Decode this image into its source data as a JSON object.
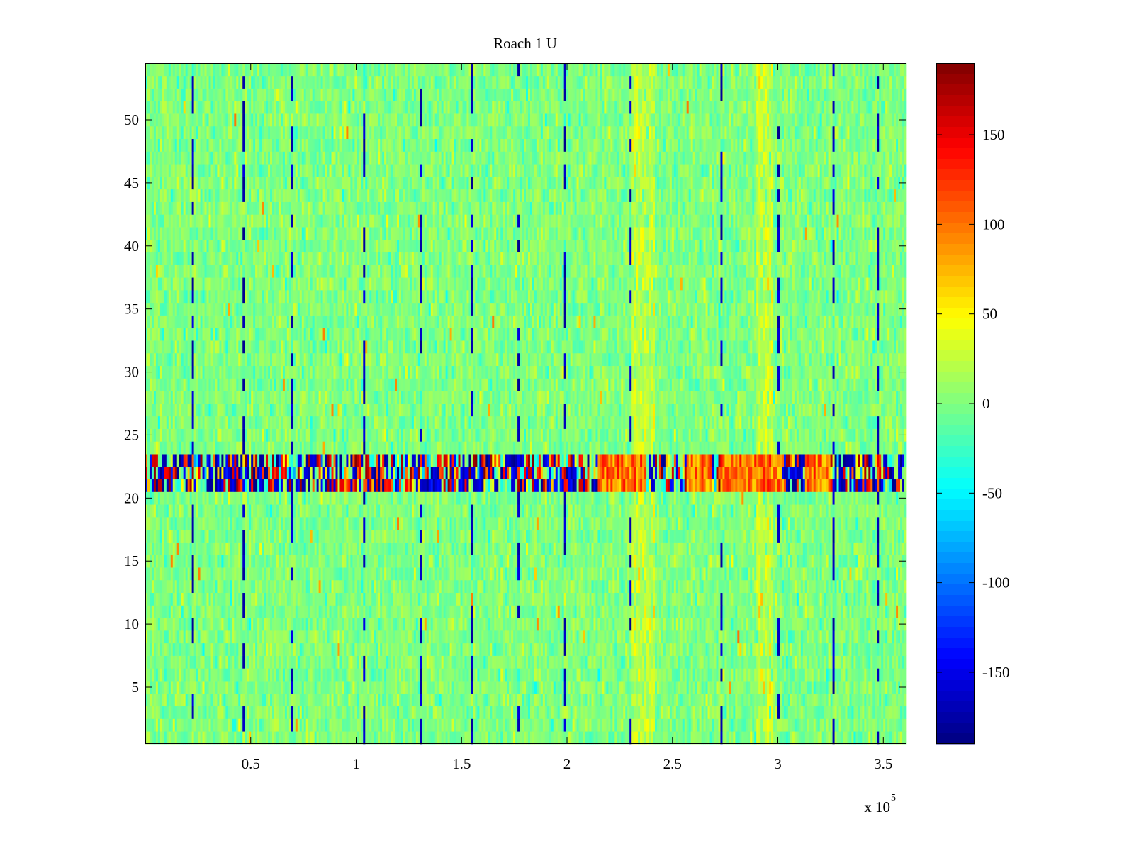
{
  "chart_data": {
    "type": "heatmap",
    "title": "Roach 1 U",
    "xlabel": "",
    "ylabel": "",
    "x_range": [
      0,
      361000
    ],
    "y_range": [
      0.5,
      54.5
    ],
    "x_ticks": [
      50000,
      100000,
      150000,
      200000,
      250000,
      300000,
      350000
    ],
    "x_tick_labels": [
      "0.5",
      "1",
      "1.5",
      "2",
      "2.5",
      "3",
      "3.5"
    ],
    "x_exponent_label": "x 10",
    "x_exponent_power": "5",
    "y_ticks": [
      5,
      10,
      15,
      20,
      25,
      30,
      35,
      40,
      45,
      50
    ],
    "y_tick_labels": [
      "5",
      "10",
      "15",
      "20",
      "25",
      "30",
      "35",
      "40",
      "45",
      "50"
    ],
    "rows": 54,
    "columns": 360,
    "colormap": "jet",
    "clim": [
      -190,
      190
    ],
    "colorbar_ticks": [
      150,
      100,
      50,
      0,
      -50,
      -100,
      -150
    ],
    "colorbar_tick_labels": [
      "150",
      "100",
      "50",
      "0",
      "-50",
      "-100",
      "-150"
    ],
    "features": {
      "high_variance_rows": [
        21,
        22,
        23
      ],
      "positive_bands_x": [
        [
          231000,
          242000
        ],
        [
          290000,
          298000
        ]
      ],
      "positive_band_rows_on_x": [
        221000,
        232000,
        263000,
        279000,
        284000,
        296000,
        319000
      ],
      "negative_spike_columns_x": [
        22000,
        46000,
        69000,
        103000,
        130000,
        154000,
        176000,
        199000,
        230000,
        273000,
        300000,
        326000,
        347000
      ]
    },
    "background_mean": 0,
    "background_noise_std": 13
  }
}
